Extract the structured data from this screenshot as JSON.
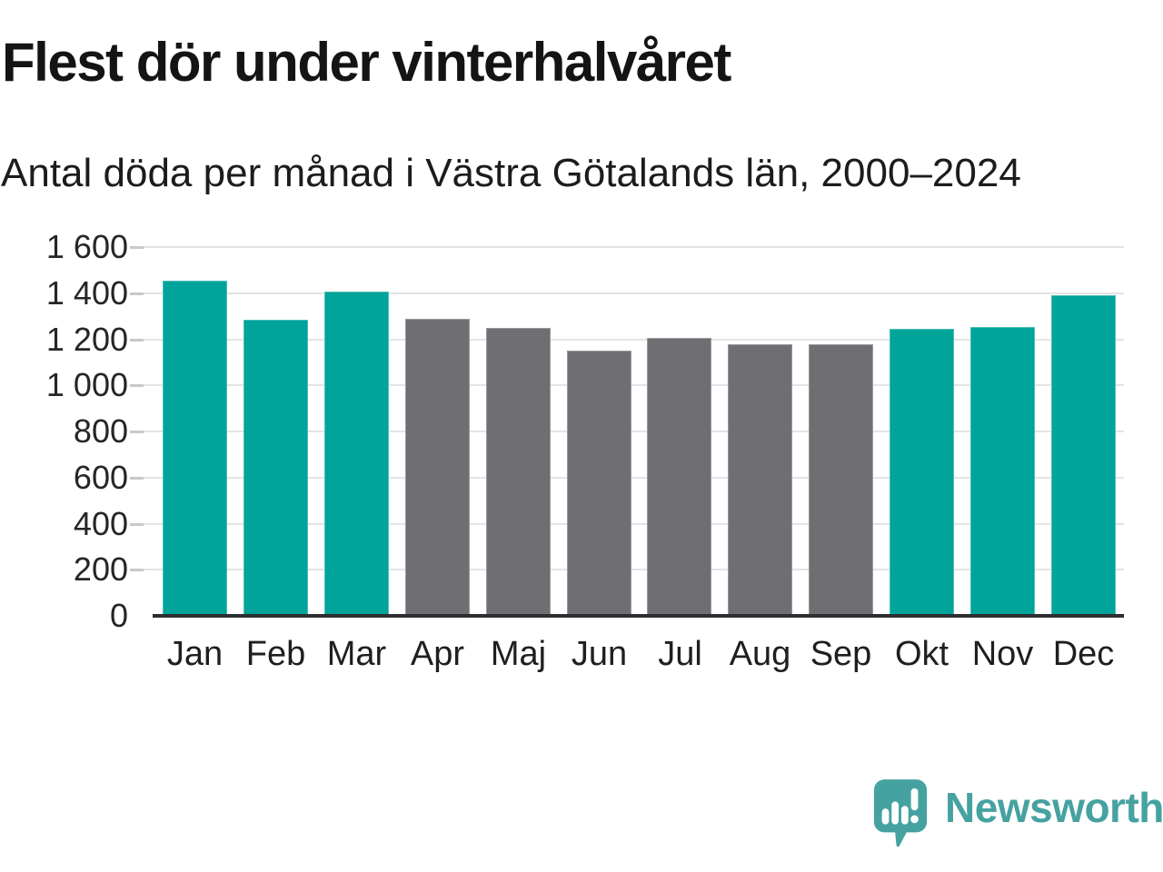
{
  "title": "Flest dör under vinterhalvåret",
  "subtitle": "Antal döda per månad i Västra Götalands län, 2000–2024",
  "footer": {
    "brand": "Newsworthy"
  },
  "colors": {
    "winter": "#00a49a",
    "summer": "#6e6e73",
    "gridline": "#e4e4e4",
    "tick": "#c9c9c9",
    "axis": "#2e2e31",
    "logo": "#46a2a1"
  },
  "chart_data": {
    "type": "bar",
    "title": "Flest dör under vinterhalvåret",
    "subtitle": "Antal döda per månad i Västra Götalands län, 2000–2024",
    "categories": [
      "Jan",
      "Feb",
      "Mar",
      "Apr",
      "Maj",
      "Jun",
      "Jul",
      "Aug",
      "Sep",
      "Okt",
      "Nov",
      "Dec"
    ],
    "values": [
      1455,
      1285,
      1405,
      1290,
      1250,
      1150,
      1205,
      1180,
      1180,
      1245,
      1255,
      1390
    ],
    "bar_colors": [
      "winter",
      "winter",
      "winter",
      "summer",
      "summer",
      "summer",
      "summer",
      "summer",
      "summer",
      "winter",
      "winter",
      "winter"
    ],
    "xlabel": "",
    "ylabel": "",
    "ylim": [
      0,
      1600
    ],
    "ytick_step": 200,
    "ytick_labels": [
      "0",
      "200",
      "400",
      "600",
      "800",
      "1 000",
      "1 200",
      "1 400",
      "1 600"
    ],
    "grid": true,
    "legend": false
  }
}
